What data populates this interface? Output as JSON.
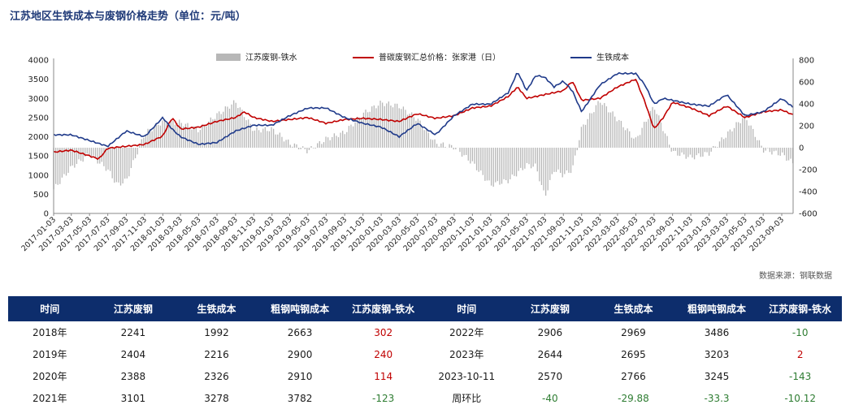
{
  "title": "江苏地区生铁成本与废钢价格走势（单位：元/吨）",
  "source": "数据来源：钢联数据",
  "chart_data": {
    "type": "line",
    "series": [
      {
        "name": "江苏废钢-铁水",
        "kind": "bar",
        "axis": "right",
        "color": "#b7b7b7",
        "x": [
          "2017-01-03",
          "2017-03-03",
          "2017-05-03",
          "2017-07-03",
          "2017-08-03",
          "2017-09-03",
          "2017-11-03",
          "2018-01-03",
          "2018-03-03",
          "2018-05-03",
          "2018-07-03",
          "2018-09-03",
          "2018-11-03",
          "2019-01-03",
          "2019-03-03",
          "2019-05-03",
          "2019-07-03",
          "2019-09-03",
          "2019-11-03",
          "2020-01-03",
          "2020-03-03",
          "2020-05-03",
          "2020-07-03",
          "2020-09-03",
          "2020-11-03",
          "2021-01-03",
          "2021-03-03",
          "2021-05-03",
          "2021-06-03",
          "2021-07-03",
          "2021-08-03",
          "2021-09-03",
          "2021-10-03",
          "2021-11-03",
          "2022-01-03",
          "2022-03-03",
          "2022-05-03",
          "2022-07-03",
          "2022-09-03",
          "2022-11-03",
          "2023-01-03",
          "2023-03-03",
          "2023-05-03",
          "2023-07-03",
          "2023-09-03",
          "2023-10-11"
        ],
        "values": [
          -380,
          -180,
          -60,
          -200,
          -340,
          -300,
          130,
          240,
          230,
          160,
          300,
          420,
          160,
          170,
          40,
          -30,
          80,
          140,
          310,
          410,
          380,
          260,
          40,
          5,
          -140,
          -340,
          -300,
          -160,
          -170,
          -450,
          -200,
          -250,
          -200,
          180,
          430,
          260,
          70,
          380,
          -40,
          -90,
          -50,
          120,
          290,
          -20,
          -60,
          -143
        ]
      },
      {
        "name": "普碳废钢汇总价格：张家港（日）",
        "kind": "line",
        "axis": "left",
        "color": "#c00000",
        "x": [
          "2017-01-03",
          "2017-03-03",
          "2017-05-03",
          "2017-06-03",
          "2017-07-03",
          "2017-09-03",
          "2017-11-03",
          "2018-01-03",
          "2018-02-03",
          "2018-03-03",
          "2018-05-03",
          "2018-07-03",
          "2018-09-03",
          "2018-10-03",
          "2018-11-03",
          "2019-01-03",
          "2019-03-03",
          "2019-05-03",
          "2019-07-03",
          "2019-09-03",
          "2019-11-03",
          "2020-01-03",
          "2020-03-03",
          "2020-05-03",
          "2020-07-03",
          "2020-09-03",
          "2020-11-03",
          "2021-01-03",
          "2021-03-03",
          "2021-04-03",
          "2021-05-03",
          "2021-06-03",
          "2021-07-03",
          "2021-09-03",
          "2021-10-03",
          "2021-11-03",
          "2022-01-03",
          "2022-03-03",
          "2022-05-03",
          "2022-06-03",
          "2022-07-03",
          "2022-08-03",
          "2022-09-03",
          "2022-11-03",
          "2023-01-03",
          "2023-03-03",
          "2023-05-03",
          "2023-07-03",
          "2023-09-03",
          "2023-10-11"
        ],
        "values": [
          1600,
          1650,
          1500,
          1420,
          1700,
          1750,
          1800,
          2020,
          2500,
          2200,
          2250,
          2400,
          2500,
          2650,
          2500,
          2400,
          2450,
          2500,
          2350,
          2450,
          2480,
          2450,
          2400,
          2600,
          2480,
          2550,
          2750,
          2800,
          3050,
          3300,
          3000,
          3050,
          3100,
          3200,
          3450,
          2950,
          3000,
          3300,
          3500,
          2900,
          2200,
          2500,
          2900,
          2750,
          2550,
          2800,
          2500,
          2650,
          2700,
          2570
        ]
      },
      {
        "name": "生铁成本",
        "kind": "line",
        "axis": "left",
        "color": "#1f3a8a",
        "x": [
          "2017-01-03",
          "2017-03-03",
          "2017-05-03",
          "2017-07-03",
          "2017-09-03",
          "2017-11-03",
          "2018-01-03",
          "2018-02-03",
          "2018-03-03",
          "2018-05-03",
          "2018-07-03",
          "2018-09-03",
          "2018-11-03",
          "2019-01-03",
          "2019-03-03",
          "2019-05-03",
          "2019-07-03",
          "2019-09-03",
          "2019-11-03",
          "2020-01-03",
          "2020-03-03",
          "2020-05-03",
          "2020-07-03",
          "2020-09-03",
          "2020-11-03",
          "2021-01-03",
          "2021-03-03",
          "2021-04-03",
          "2021-05-03",
          "2021-06-03",
          "2021-07-03",
          "2021-08-03",
          "2021-09-03",
          "2021-10-03",
          "2021-11-03",
          "2022-01-03",
          "2022-03-03",
          "2022-05-03",
          "2022-06-03",
          "2022-07-03",
          "2022-08-03",
          "2022-09-03",
          "2022-11-03",
          "2023-01-03",
          "2023-03-03",
          "2023-05-03",
          "2023-07-03",
          "2023-09-03",
          "2023-10-11"
        ],
        "values": [
          2050,
          2050,
          1900,
          1750,
          2150,
          2000,
          2500,
          2200,
          2000,
          1800,
          1850,
          2150,
          2300,
          2300,
          2550,
          2750,
          2750,
          2500,
          2350,
          2250,
          2000,
          2350,
          2050,
          2550,
          2850,
          2850,
          3150,
          3700,
          3200,
          3600,
          3550,
          3300,
          3450,
          3200,
          2650,
          3350,
          3650,
          3650,
          3350,
          2850,
          3000,
          2950,
          2850,
          2800,
          3100,
          2550,
          2650,
          3000,
          2766
        ]
      }
    ],
    "x_ticks": [
      "2017-01-03",
      "2017-03-03",
      "2017-05-03",
      "2017-07-03",
      "2017-09-03",
      "2017-11-03",
      "2018-01-03",
      "2018-03-03",
      "2018-05-03",
      "2018-07-03",
      "2018-09-03",
      "2018-11-03",
      "2019-01-03",
      "2019-03-03",
      "2019-05-03",
      "2019-07-03",
      "2019-09-03",
      "2019-11-03",
      "2020-01-03",
      "2020-03-03",
      "2020-05-03",
      "2020-07-03",
      "2020-09-03",
      "2020-11-03",
      "2021-01-03",
      "2021-03-03",
      "2021-05-03",
      "2021-07-03",
      "2021-09-03",
      "2021-11-03",
      "2022-01-03",
      "2022-03-03",
      "2022-05-03",
      "2022-07-03",
      "2022-09-03",
      "2022-11-03",
      "2023-01-03",
      "2023-03-03",
      "2023-05-03",
      "2023-07-03",
      "2023-09-03"
    ],
    "y_left": {
      "ticks": [
        0,
        500,
        1000,
        1500,
        2000,
        2500,
        3000,
        3500,
        4000
      ],
      "ylim": [
        0,
        4000
      ]
    },
    "y_right": {
      "ticks": [
        -600,
        -400,
        -200,
        0,
        200,
        400,
        600,
        800
      ],
      "ylim": [
        -600,
        800
      ]
    },
    "legend_position": "top",
    "grid": false
  },
  "table": {
    "headers": [
      "时间",
      "江苏废钢",
      "生铁成本",
      "粗钢吨钢成本",
      "江苏废钢-铁水",
      "时间",
      "江苏废钢",
      "生铁成本",
      "粗钢吨钢成本",
      "江苏废钢-铁水"
    ],
    "rows": [
      [
        "2018年",
        "2241",
        "1992",
        "2663",
        "302",
        "2022年",
        "2906",
        "2969",
        "3486",
        "-10"
      ],
      [
        "2019年",
        "2404",
        "2216",
        "2900",
        "240",
        "2023年",
        "2644",
        "2695",
        "3203",
        "2"
      ],
      [
        "2020年",
        "2388",
        "2326",
        "2910",
        "114",
        "2023-10-11",
        "2570",
        "2766",
        "3245",
        "-143"
      ],
      [
        "2021年",
        "3101",
        "3278",
        "3782",
        "-123",
        "周环比",
        "-40",
        "-29.88",
        "-33.3",
        "-10.12"
      ]
    ]
  }
}
